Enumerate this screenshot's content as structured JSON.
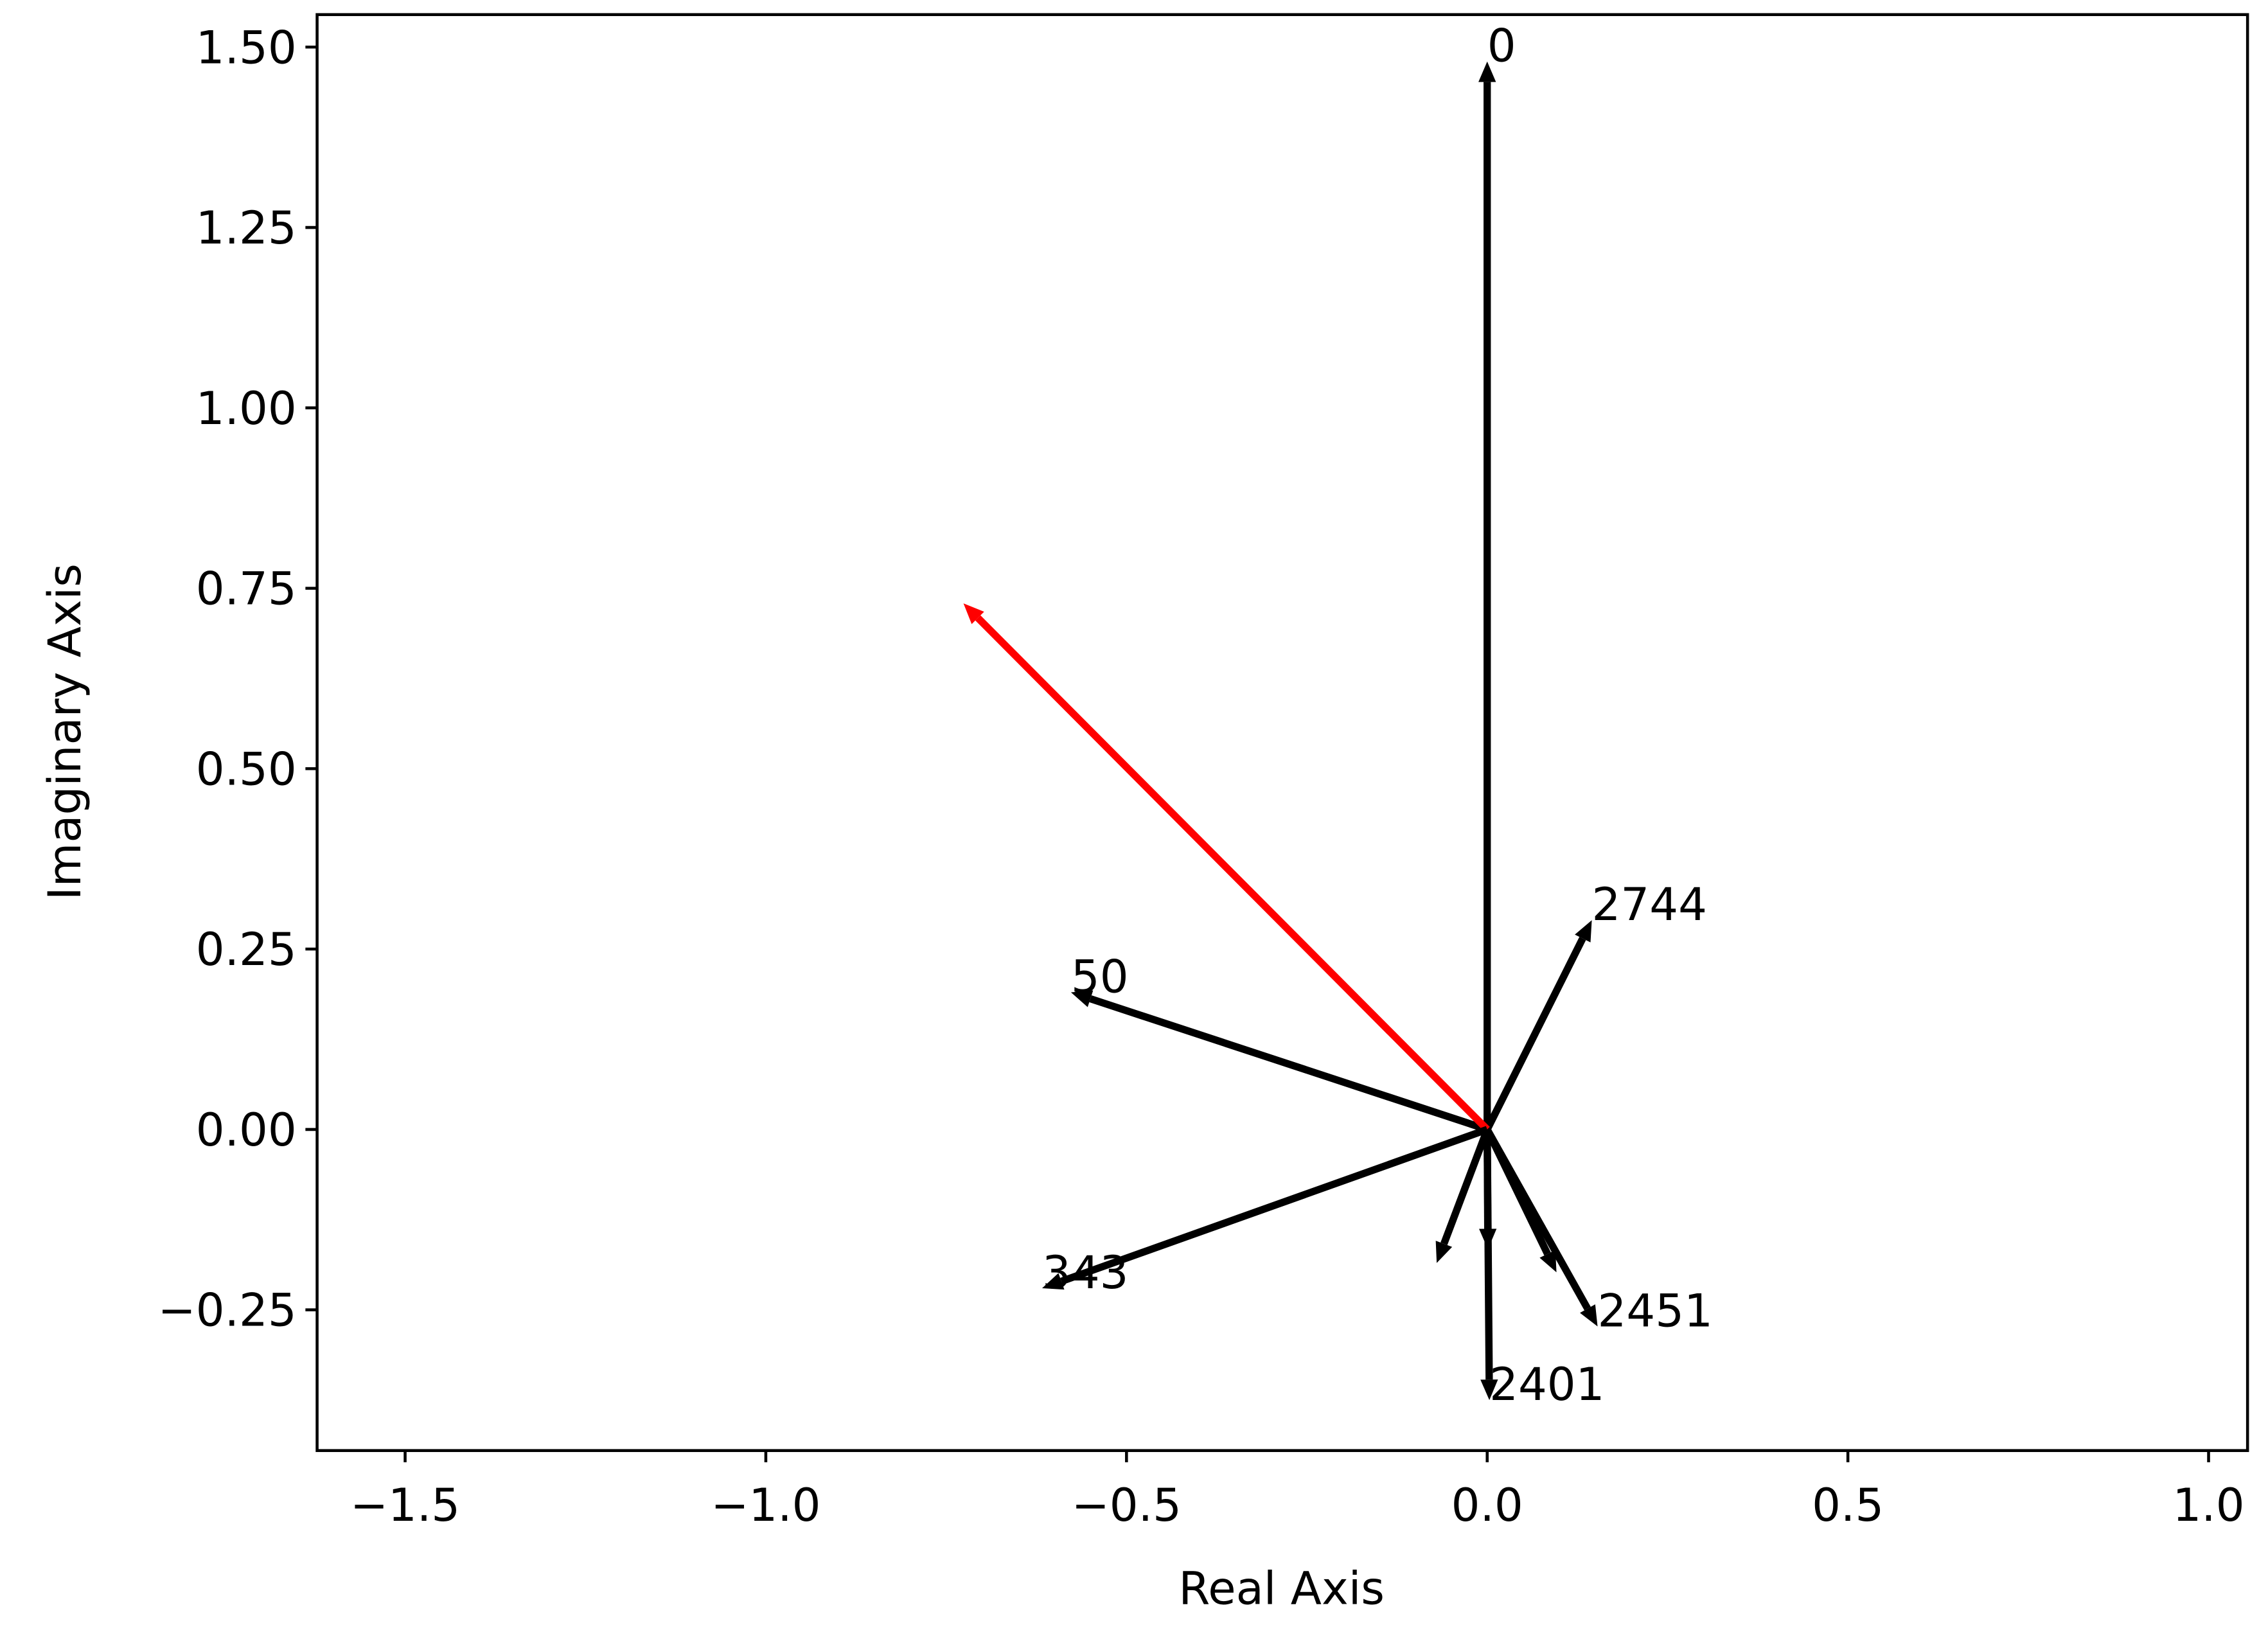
{
  "chart_data": {
    "type": "quiver",
    "xlabel": "Real Axis",
    "ylabel": "Imaginary Axis",
    "labels": [
      "0",
      "2744",
      "50",
      null,
      "343",
      "2451",
      "2401",
      null,
      null,
      null
    ],
    "u": [
      0.0,
      0.145,
      -0.577,
      -0.726,
      -0.617,
      0.153,
      0.003,
      -0.07,
      0.001,
      0.096
    ],
    "v": [
      1.48,
      0.29,
      0.19,
      0.729,
      -0.22,
      -0.273,
      -0.375,
      -0.185,
      -0.166,
      -0.198
    ],
    "colors": [
      "#000000",
      "#000000",
      "#000000",
      "#ff0000",
      "#000000",
      "#000000",
      "#000000",
      "#000000",
      "#000000",
      "#000000"
    ],
    "xlim": [
      -1.622,
      1.054
    ],
    "ylim": [
      -0.445,
      1.545
    ],
    "xticks": [
      {
        "value": -1.5,
        "label": "−1.5"
      },
      {
        "value": -1.0,
        "label": "−1.0"
      },
      {
        "value": -0.5,
        "label": "−0.5"
      },
      {
        "value": 0,
        "label": "0.0"
      },
      0.5,
      {
        "value": 1.0,
        "label": "1.0"
      }
    ],
    "yticks": [
      {
        "value": -0.25,
        "label": "−0.25"
      },
      {
        "value": 0,
        "label": "0.00"
      },
      {
        "value": 0.25,
        "label": "0.25"
      },
      {
        "value": 0.5,
        "label": "0.50"
      },
      {
        "value": 0.75,
        "label": "0.75"
      },
      {
        "value": 1.0,
        "label": "1.00"
      },
      {
        "value": 1.25,
        "label": "1.25"
      },
      {
        "value": 1.5,
        "label": "1.50"
      }
    ]
  }
}
